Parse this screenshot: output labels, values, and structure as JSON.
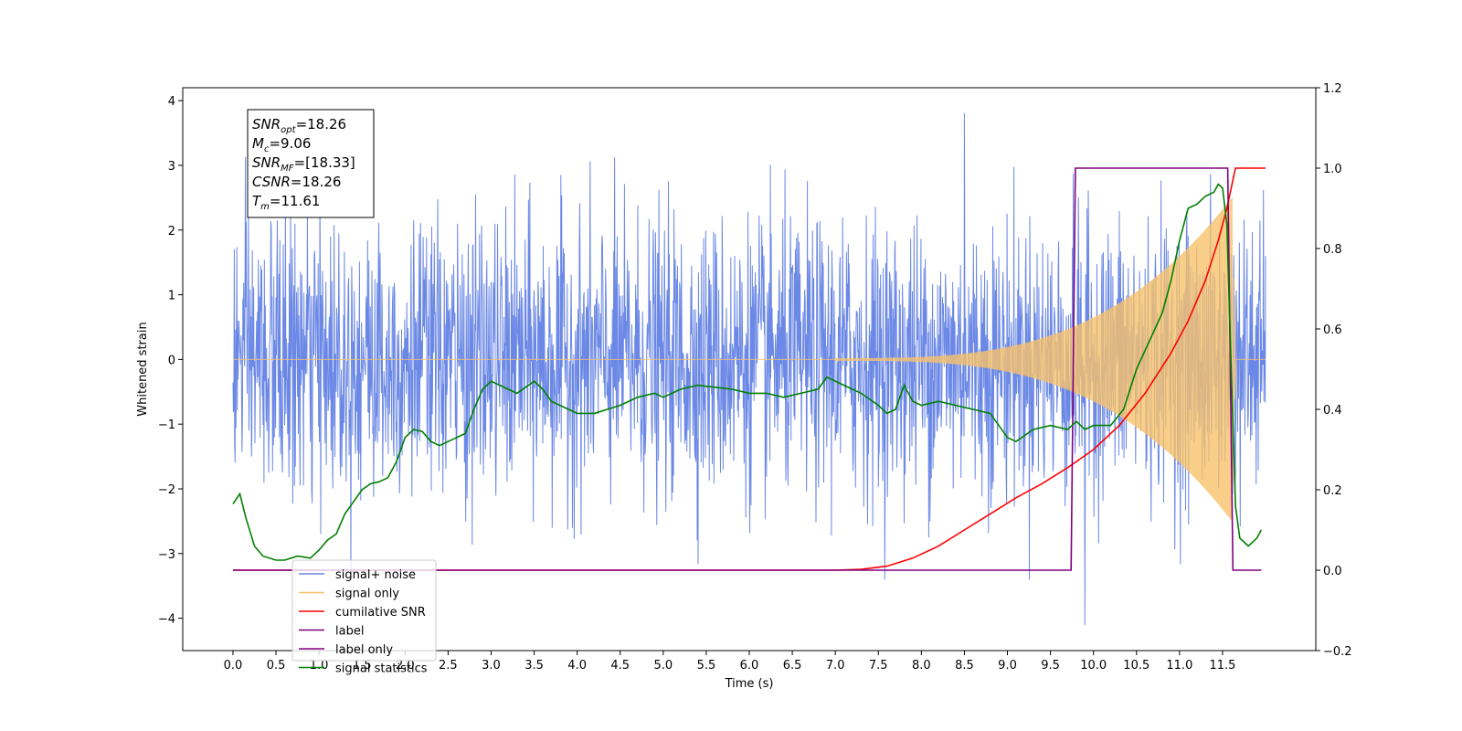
{
  "chart_data": {
    "type": "line",
    "title": "",
    "xlabel": "Time (s)",
    "ylabel": "Whitened strain",
    "xlim": [
      -0.5835,
      12.5835
    ],
    "ylim": [
      -4.5,
      4.2
    ],
    "y2lim": [
      -0.2,
      1.2
    ],
    "x_ticks": [
      0.0,
      0.5,
      1.0,
      1.5,
      2.0,
      2.5,
      3.0,
      3.5,
      4.0,
      4.5,
      5.0,
      5.5,
      6.0,
      6.5,
      7.0,
      7.5,
      8.0,
      8.5,
      9.0,
      9.5,
      10.0,
      10.5,
      11.0,
      11.5
    ],
    "x_tick_labels": [
      "0.0",
      "0.5",
      "1.0",
      "1.5",
      "2.0",
      "2.5",
      "3.0",
      "3.5",
      "4.0",
      "4.5",
      "5.0",
      "5.5",
      "6.0",
      "6.5",
      "7.0",
      "7.5",
      "8.0",
      "8.5",
      "9.0",
      "9.5",
      "10.0",
      "10.5",
      "11.0",
      "11.5"
    ],
    "y_ticks": [
      -4,
      -3,
      -2,
      -1,
      0,
      1,
      2,
      3,
      4
    ],
    "y_tick_labels": [
      "−4",
      "−3",
      "−2",
      "−1",
      "0",
      "1",
      "2",
      "3",
      "4"
    ],
    "y2_ticks": [
      -0.2,
      0.0,
      0.2,
      0.4,
      0.6,
      0.8,
      1.0,
      1.2
    ],
    "y2_tick_labels": [
      "−0.2",
      "0.0",
      "0.2",
      "0.4",
      "0.6",
      "0.8",
      "1.0",
      "1.2"
    ],
    "grid": false,
    "legend_position": "lower-left",
    "annotation": {
      "lines": [
        {
          "base": "SNR",
          "sub": "opt",
          "value": "=18.26"
        },
        {
          "base": "M",
          "sub": "c",
          "value": "=9.06"
        },
        {
          "base": "SNR",
          "sub": "MF",
          "value": "=[18.33]"
        },
        {
          "base": "CSNR",
          "sub": "",
          "value": "=18.26"
        },
        {
          "base": "T",
          "sub": "m",
          "value": "=11.61"
        }
      ]
    },
    "noise": {
      "t_start": 0.0,
      "t_end": 12.0,
      "sigma": 1.05,
      "clip": [
        -3.4,
        3.8
      ],
      "y_min": -4.1,
      "y_max": 3.8
    },
    "chirp": {
      "t_start": 7.0,
      "t_end": 11.61,
      "amplitude_start": 0.02,
      "amplitude_end": 2.5
    },
    "series": [
      {
        "name": "signal+ noise",
        "axis": "left",
        "color": "#6b88e6"
      },
      {
        "name": "signal only",
        "axis": "left",
        "color": "#f7c26b"
      },
      {
        "name": "cumilative SNR",
        "axis": "right",
        "color": "#ff0000",
        "x": [
          0.0,
          7.0,
          7.3,
          7.6,
          7.9,
          8.2,
          8.5,
          8.8,
          9.1,
          9.4,
          9.7,
          10.0,
          10.3,
          10.6,
          10.9,
          11.1,
          11.3,
          11.45,
          11.55,
          11.61,
          11.65,
          11.7,
          12.0
        ],
        "y": [
          0.0,
          0.0,
          0.002,
          0.01,
          0.03,
          0.06,
          0.1,
          0.14,
          0.18,
          0.215,
          0.255,
          0.3,
          0.36,
          0.44,
          0.54,
          0.62,
          0.72,
          0.82,
          0.9,
          0.96,
          1.0,
          1.0,
          1.0
        ]
      },
      {
        "name": "label",
        "axis": "right",
        "color": "#800080",
        "x": [
          0.0,
          9.74,
          9.79,
          11.56,
          11.62,
          11.95
        ],
        "y": [
          0.0,
          0.0,
          1.0,
          1.0,
          0.0,
          0.0
        ]
      },
      {
        "name": "label only",
        "axis": "right",
        "color": "#800080"
      },
      {
        "name": "signal statistics",
        "axis": "right",
        "color": "#008000",
        "x": [
          0.0,
          0.08,
          0.15,
          0.25,
          0.35,
          0.5,
          0.6,
          0.75,
          0.9,
          1.0,
          1.1,
          1.2,
          1.3,
          1.4,
          1.5,
          1.6,
          1.7,
          1.8,
          1.9,
          2.0,
          2.1,
          2.2,
          2.3,
          2.4,
          2.5,
          2.6,
          2.7,
          2.8,
          2.9,
          3.0,
          3.1,
          3.2,
          3.3,
          3.5,
          3.6,
          3.7,
          3.9,
          4.0,
          4.2,
          4.5,
          4.7,
          4.9,
          5.0,
          5.2,
          5.4,
          5.6,
          5.8,
          6.0,
          6.2,
          6.4,
          6.6,
          6.8,
          6.9,
          7.0,
          7.1,
          7.3,
          7.5,
          7.6,
          7.7,
          7.8,
          7.9,
          8.0,
          8.2,
          8.4,
          8.6,
          8.8,
          9.0,
          9.1,
          9.3,
          9.5,
          9.7,
          9.8,
          9.9,
          10.0,
          10.2,
          10.35,
          10.5,
          10.65,
          10.8,
          10.9,
          11.0,
          11.1,
          11.2,
          11.3,
          11.4,
          11.45,
          11.5,
          11.55,
          11.6,
          11.65,
          11.7,
          11.8,
          11.9,
          11.95
        ],
        "y": [
          0.165,
          0.19,
          0.13,
          0.06,
          0.035,
          0.025,
          0.025,
          0.035,
          0.03,
          0.05,
          0.075,
          0.09,
          0.14,
          0.17,
          0.2,
          0.215,
          0.22,
          0.23,
          0.27,
          0.33,
          0.35,
          0.345,
          0.32,
          0.31,
          0.32,
          0.33,
          0.34,
          0.4,
          0.45,
          0.47,
          0.46,
          0.45,
          0.44,
          0.47,
          0.45,
          0.42,
          0.4,
          0.39,
          0.39,
          0.41,
          0.43,
          0.44,
          0.43,
          0.45,
          0.46,
          0.455,
          0.45,
          0.44,
          0.44,
          0.43,
          0.44,
          0.45,
          0.48,
          0.47,
          0.46,
          0.44,
          0.41,
          0.39,
          0.4,
          0.46,
          0.42,
          0.41,
          0.42,
          0.41,
          0.4,
          0.39,
          0.33,
          0.32,
          0.35,
          0.36,
          0.35,
          0.37,
          0.35,
          0.36,
          0.36,
          0.4,
          0.5,
          0.57,
          0.64,
          0.72,
          0.82,
          0.9,
          0.91,
          0.93,
          0.94,
          0.96,
          0.95,
          0.86,
          0.5,
          0.16,
          0.08,
          0.06,
          0.08,
          0.1
        ]
      }
    ]
  }
}
